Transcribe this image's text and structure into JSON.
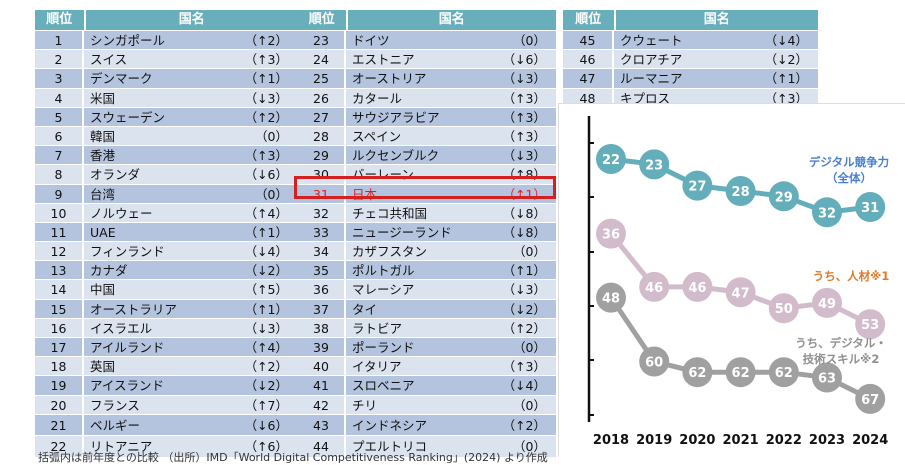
{
  "table": {
    "headers": {
      "rank": "順位",
      "country": "国名"
    },
    "col1": [
      [
        "1",
        "シンガポール",
        "（↑2）"
      ],
      [
        "2",
        "スイス",
        "（↑3）"
      ],
      [
        "3",
        "デンマーク",
        "（↑1）"
      ],
      [
        "4",
        "米国",
        "（↓3）"
      ],
      [
        "5",
        "スウェーデン",
        "（↑2）"
      ],
      [
        "6",
        "韓国",
        "（0）"
      ],
      [
        "7",
        "香港",
        "（↑3）"
      ],
      [
        "8",
        "オランダ",
        "（↓6）"
      ],
      [
        "9",
        "台湾",
        "（0）"
      ],
      [
        "10",
        "ノルウェー",
        "（↑4）"
      ],
      [
        "11",
        "UAE",
        "（↑1）"
      ],
      [
        "12",
        "フィンランド",
        "（↓4）"
      ],
      [
        "13",
        "カナダ",
        "（↓2）"
      ],
      [
        "14",
        "中国",
        "（↑5）"
      ],
      [
        "15",
        "オーストラリア",
        "（↑1）"
      ],
      [
        "16",
        "イスラエル",
        "（↓3）"
      ],
      [
        "17",
        "アイルランド",
        "（↑4）"
      ],
      [
        "18",
        "英国",
        "（↑2）"
      ],
      [
        "19",
        "アイスランド",
        "（↓2）"
      ],
      [
        "20",
        "フランス",
        "（↑7）"
      ],
      [
        "21",
        "ベルギー",
        "（↓6）"
      ],
      [
        "22",
        "リトアニア",
        "（↑6）"
      ]
    ],
    "col2": [
      [
        "23",
        "ドイツ",
        "（0）"
      ],
      [
        "24",
        "エストニア",
        "（↓6）"
      ],
      [
        "25",
        "オーストリア",
        "（↓3）"
      ],
      [
        "26",
        "カタール",
        "（↑3）"
      ],
      [
        "27",
        "サウジアラビア",
        "（↑3）"
      ],
      [
        "28",
        "スペイン",
        "（↑3）"
      ],
      [
        "29",
        "ルクセンブルク",
        "（↓3）"
      ],
      [
        "30",
        "バーレーン",
        "（↑8）"
      ],
      [
        "31",
        "日本",
        "（↑1）"
      ],
      [
        "32",
        "チェコ共和国",
        "（↓8）"
      ],
      [
        "33",
        "ニュージーランド",
        "（↓8）"
      ],
      [
        "34",
        "カザフスタン",
        "（0）"
      ],
      [
        "35",
        "ポルトガル",
        "（↑1）"
      ],
      [
        "36",
        "マレーシア",
        "（↓3）"
      ],
      [
        "37",
        "タイ",
        "（↓2）"
      ],
      [
        "38",
        "ラトビア",
        "（↑2）"
      ],
      [
        "39",
        "ポーランド",
        "（0）"
      ],
      [
        "40",
        "イタリア",
        "（↑3）"
      ],
      [
        "41",
        "スロベニア",
        "（↓4）"
      ],
      [
        "42",
        "チリ",
        "（0）"
      ],
      [
        "43",
        "インドネシア",
        "（↑2）"
      ],
      [
        "44",
        "プエルトリコ",
        "（0）"
      ]
    ],
    "col3": [
      [
        "45",
        "クウェート",
        "（↓4）"
      ],
      [
        "46",
        "クロアチア",
        "（↓2）"
      ],
      [
        "47",
        "ルーマニア",
        "（↑1）"
      ],
      [
        "48",
        "キプロス",
        "（↑3）"
      ]
    ],
    "highlight_rank": "31"
  },
  "footnote": "括弧内は前年度との比較 （出所）IMD「World Digital Competitiveness Ranking」(2024) より作成",
  "chart_data": {
    "type": "line",
    "x": [
      "2018",
      "2019",
      "2020",
      "2021",
      "2022",
      "2023",
      "2024"
    ],
    "y_inverted": true,
    "ylim": [
      16,
      72
    ],
    "grid": false,
    "series": [
      {
        "name": "デジタル競争力（全体）",
        "label_lines": [
          "デジタル競争力",
          "（全体）"
        ],
        "values": [
          22,
          23,
          27,
          28,
          29,
          32,
          31
        ],
        "color": "#64aebb",
        "label_color": "#4a7fd0"
      },
      {
        "name": "うち、人材※1",
        "label_lines": [
          "うち、人材※1"
        ],
        "values": [
          36,
          46,
          46,
          47,
          50,
          49,
          53
        ],
        "color": "#d2bccb",
        "label_color": "#e07a2a"
      },
      {
        "name": "うち、デジタル・技術スキル※2",
        "label_lines": [
          "うち、デジタル・",
          "技術スキル※2"
        ],
        "values": [
          48,
          60,
          62,
          62,
          62,
          63,
          67
        ],
        "color": "#a0a0a0",
        "label_color": "#909090"
      }
    ]
  }
}
